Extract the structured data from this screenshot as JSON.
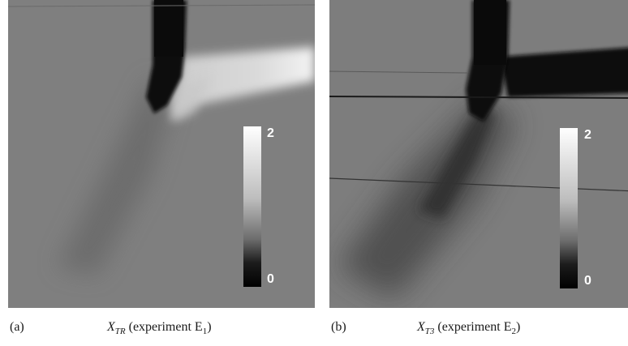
{
  "panels": [
    {
      "letter": "(a)",
      "symbol": "X",
      "symbol_sub": "TR",
      "experiment_prefix": " (experiment E",
      "experiment_sub": "1",
      "experiment_suffix": ")",
      "colorbar": {
        "max": "2",
        "min": "0"
      }
    },
    {
      "letter": "(b)",
      "symbol": "X",
      "symbol_sub": "T3",
      "experiment_prefix": " (experiment E",
      "experiment_sub": "2",
      "experiment_suffix": ")",
      "colorbar": {
        "max": "2",
        "min": "0"
      }
    }
  ],
  "colors": {
    "background_gray": "#7e7e7e",
    "dark": "#0a0a0a",
    "light": "#f0f0f0"
  }
}
